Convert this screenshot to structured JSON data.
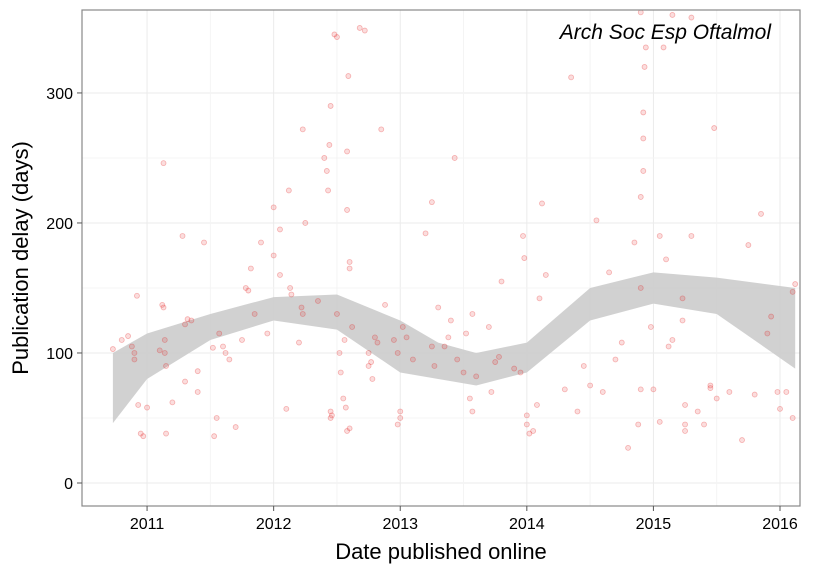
{
  "chart_data": {
    "type": "scatter",
    "annotation": "Arch Soc Esp Oftalmol",
    "xlabel": "Date published online",
    "ylabel": "Publication delay (days)",
    "color": "#e41a1c",
    "band_color": "#cccccc",
    "grid": true,
    "xlim": [
      2010.486,
      2016.158
    ],
    "ylim": [
      -17.7,
      363.8
    ],
    "xticks": [
      2011,
      2012,
      2013,
      2014,
      2015,
      2016
    ],
    "yticks": [
      0,
      100,
      200,
      300
    ],
    "x": [
      2010.73,
      2010.8,
      2010.85,
      2010.9,
      2010.9,
      2010.93,
      2010.95,
      2010.97,
      2011.0,
      2010.92,
      2010.88,
      2011.1,
      2011.12,
      2011.13,
      2011.14,
      2011.14,
      2011.15,
      2011.13,
      2011.15,
      2011.2,
      2011.28,
      2011.3,
      2011.3,
      2011.32,
      2011.35,
      2011.4,
      2011.4,
      2011.45,
      2011.52,
      2011.53,
      2011.55,
      2011.57,
      2011.6,
      2011.62,
      2011.65,
      2011.7,
      2011.75,
      2011.78,
      2011.8,
      2011.82,
      2011.85,
      2011.9,
      2011.95,
      2012.0,
      2012.0,
      2012.05,
      2012.05,
      2012.1,
      2012.12,
      2012.13,
      2012.14,
      2012.2,
      2012.22,
      2012.23,
      2012.23,
      2012.25,
      2012.35,
      2012.4,
      2012.42,
      2012.43,
      2012.44,
      2012.45,
      2012.45,
      2012.45,
      2012.46,
      2012.48,
      2012.5,
      2012.5,
      2012.52,
      2012.53,
      2012.55,
      2012.56,
      2012.58,
      2012.58,
      2012.59,
      2012.6,
      2012.6,
      2012.58,
      2012.6,
      2012.57,
      2012.62,
      2012.68,
      2012.72,
      2012.75,
      2012.75,
      2012.77,
      2012.78,
      2012.8,
      2012.82,
      2012.85,
      2012.88,
      2012.95,
      2012.98,
      2012.98,
      2013.0,
      2013.0,
      2013.02,
      2013.05,
      2013.1,
      2013.2,
      2013.25,
      2013.25,
      2013.27,
      2013.3,
      2013.35,
      2013.38,
      2013.4,
      2013.43,
      2013.45,
      2013.5,
      2013.52,
      2013.55,
      2013.57,
      2013.57,
      2013.6,
      2013.7,
      2013.72,
      2013.75,
      2013.78,
      2013.8,
      2013.9,
      2013.95,
      2013.97,
      2013.98,
      2014.0,
      2014.0,
      2014.02,
      2014.05,
      2014.08,
      2014.1,
      2014.12,
      2014.15,
      2014.3,
      2014.35,
      2014.4,
      2014.45,
      2014.5,
      2014.55,
      2014.6,
      2014.65,
      2014.7,
      2014.75,
      2014.8,
      2014.85,
      2014.88,
      2014.9,
      2014.9,
      2014.9,
      2014.92,
      2014.92,
      2014.92,
      2014.93,
      2014.94,
      2014.9,
      2014.98,
      2015.0,
      2015.05,
      2015.05,
      2015.08,
      2015.1,
      2015.12,
      2015.15,
      2015.15,
      2015.23,
      2015.23,
      2015.25,
      2015.25,
      2015.25,
      2015.3,
      2015.3,
      2015.35,
      2015.4,
      2015.45,
      2015.45,
      2015.48,
      2015.5,
      2015.6,
      2015.7,
      2015.75,
      2015.8,
      2015.85,
      2015.9,
      2015.93,
      2016.0,
      2016.05,
      2016.1,
      2016.1,
      2016.12,
      2015.98
    ],
    "values": [
      103,
      110,
      113,
      100,
      95,
      60,
      38,
      36,
      58,
      144,
      105,
      102,
      137,
      135,
      110,
      100,
      90,
      246,
      38,
      62,
      190,
      78,
      122,
      126,
      125,
      70,
      86,
      185,
      104,
      36,
      50,
      115,
      105,
      100,
      95,
      43,
      110,
      150,
      148,
      165,
      130,
      185,
      115,
      212,
      175,
      195,
      160,
      57,
      225,
      150,
      145,
      108,
      135,
      130,
      272,
      200,
      140,
      250,
      240,
      225,
      260,
      290,
      55,
      50,
      52,
      345,
      343,
      130,
      100,
      85,
      65,
      110,
      210,
      255,
      313,
      170,
      165,
      40,
      42,
      58,
      120,
      350,
      348,
      90,
      100,
      93,
      80,
      112,
      108,
      272,
      137,
      110,
      100,
      45,
      55,
      50,
      120,
      112,
      95,
      192,
      216,
      105,
      90,
      135,
      105,
      112,
      125,
      250,
      95,
      85,
      115,
      65,
      55,
      130,
      82,
      120,
      70,
      93,
      97,
      155,
      88,
      85,
      190,
      173,
      52,
      45,
      38,
      40,
      60,
      142,
      215,
      160,
      72,
      312,
      55,
      90,
      75,
      202,
      70,
      162,
      95,
      108,
      27,
      185,
      45,
      72,
      150,
      220,
      240,
      265,
      285,
      320,
      335,
      362,
      120,
      72,
      47,
      190,
      335,
      172,
      105,
      360,
      110,
      142,
      125,
      60,
      45,
      40,
      190,
      358,
      55,
      45,
      75,
      73,
      273,
      65,
      70,
      33,
      183,
      68,
      207,
      115,
      128,
      57,
      70,
      50,
      147,
      153,
      70
    ],
    "band": {
      "x": [
        2010.73,
        2011.0,
        2011.5,
        2012.0,
        2012.5,
        2013.0,
        2013.3,
        2013.6,
        2014.0,
        2014.5,
        2015.0,
        2015.5,
        2016.12
      ],
      "upper": [
        100,
        115,
        130,
        143,
        145,
        125,
        108,
        100,
        108,
        150,
        162,
        158,
        150
      ],
      "lower": [
        46,
        80,
        110,
        125,
        118,
        85,
        80,
        75,
        85,
        125,
        138,
        130,
        88
      ]
    }
  }
}
